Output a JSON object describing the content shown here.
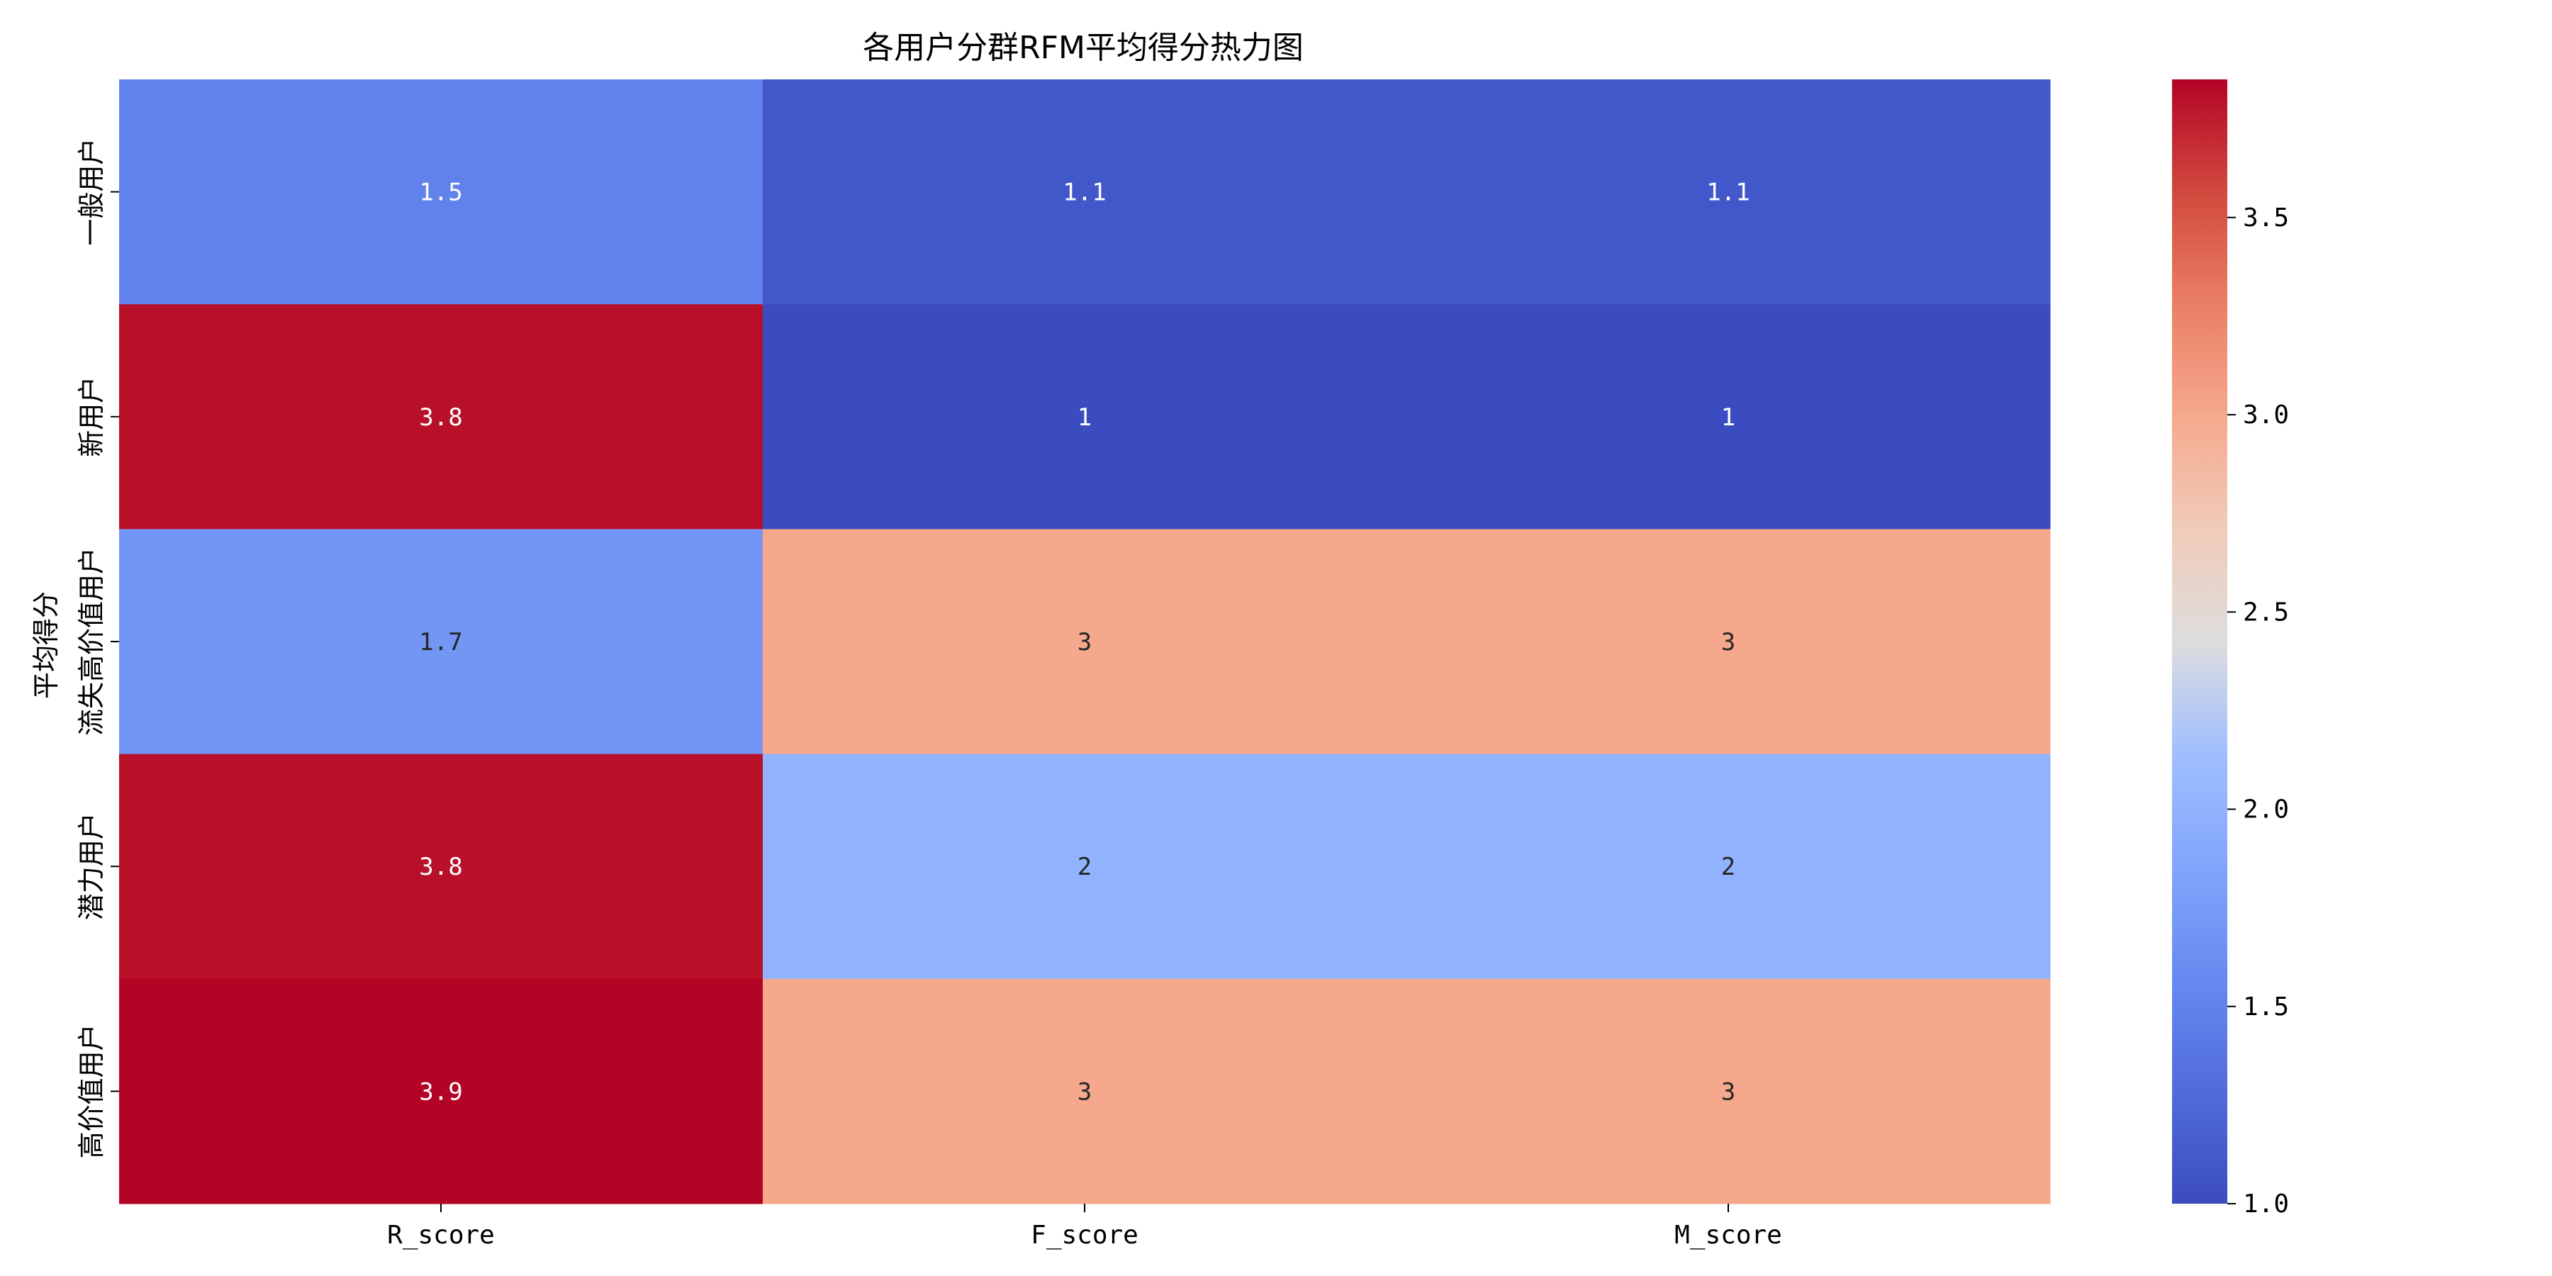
{
  "chart_data": {
    "type": "heatmap",
    "title": "各用户分群RFM平均得分热力图",
    "xlabel": "",
    "ylabel": "平均得分",
    "columns": [
      "R_score",
      "F_score",
      "M_score"
    ],
    "rows": [
      "一般用户",
      "新用户",
      "流失高价值用户",
      "潜力用户",
      "高价值用户"
    ],
    "values": [
      [
        1.5,
        1.1,
        1.1
      ],
      [
        3.8,
        1.0,
        1.0
      ],
      [
        1.7,
        3.0,
        3.0
      ],
      [
        3.8,
        2.0,
        2.0
      ],
      [
        3.9,
        3.0,
        3.0
      ]
    ],
    "annotations": [
      [
        "1.5",
        "1.1",
        "1.1"
      ],
      [
        "3.8",
        "1",
        "1"
      ],
      [
        "1.7",
        "3",
        "3"
      ],
      [
        "3.8",
        "2",
        "2"
      ],
      [
        "3.9",
        "3",
        "3"
      ]
    ],
    "colorscale": "coolwarm",
    "color_range": [
      1.0,
      3.85
    ],
    "colorbar_ticks": [
      "1.0",
      "1.5",
      "2.0",
      "2.5",
      "3.0",
      "3.5"
    ],
    "colors": {
      "low": "#3b4cc0",
      "mid": "#dddddd",
      "high": "#b40426"
    }
  }
}
